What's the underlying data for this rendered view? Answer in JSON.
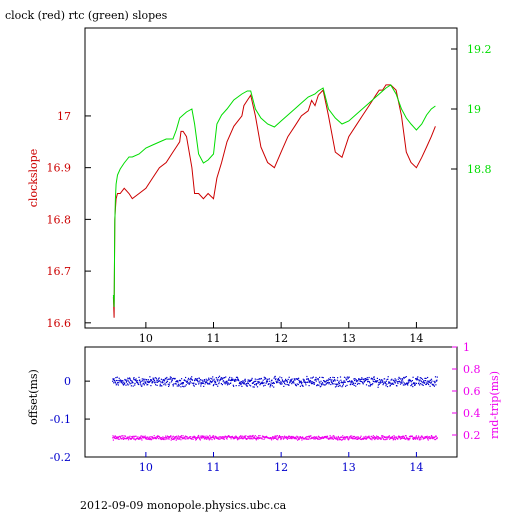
{
  "header": {
    "title": "clock (red) rtc (green) slopes",
    "footer": "2012-09-09  monopole.physics.ubc.ca"
  },
  "colors": {
    "red": "#cc0000",
    "green": "#00dd00",
    "blue": "#0000cc",
    "magenta": "#ee00ee",
    "axis": "#000000"
  },
  "chart_data": [
    {
      "type": "line",
      "title": "clock (red) rtc (green) slopes",
      "xlabel": "",
      "ylabel": "clockslope",
      "xlim": [
        9.1,
        14.6
      ],
      "ylim": [
        16.59,
        17.17
      ],
      "y2lim": [
        18.27,
        19.27
      ],
      "xticks": [
        10,
        11,
        12,
        13,
        14
      ],
      "yticks": [
        16.6,
        16.7,
        16.8,
        16.9,
        17
      ],
      "y2ticks": [
        18.8,
        19,
        19.2
      ],
      "grid": false,
      "series": [
        {
          "name": "clock",
          "axis": "left",
          "color": "red",
          "x": [
            9.52,
            9.53,
            9.54,
            9.55,
            9.56,
            9.58,
            9.62,
            9.68,
            9.75,
            9.8,
            9.9,
            10.0,
            10.1,
            10.2,
            10.3,
            10.4,
            10.45,
            10.5,
            10.52,
            10.55,
            10.6,
            10.68,
            10.72,
            10.78,
            10.85,
            10.92,
            11.0,
            11.05,
            11.12,
            11.2,
            11.3,
            11.42,
            11.45,
            11.5,
            11.55,
            11.62,
            11.7,
            11.8,
            11.9,
            12.0,
            12.1,
            12.2,
            12.3,
            12.4,
            12.45,
            12.5,
            12.55,
            12.62,
            12.7,
            12.8,
            12.9,
            13.0,
            13.1,
            13.2,
            13.3,
            13.4,
            13.45,
            13.5,
            13.55,
            13.62,
            13.7,
            13.78,
            13.85,
            13.92,
            14.0,
            14.08,
            14.15,
            14.22,
            14.28
          ],
          "values": [
            16.65,
            16.61,
            16.8,
            16.82,
            16.84,
            16.85,
            16.85,
            16.86,
            16.85,
            16.84,
            16.85,
            16.86,
            16.88,
            16.9,
            16.91,
            16.93,
            16.94,
            16.95,
            16.97,
            16.97,
            16.96,
            16.9,
            16.85,
            16.85,
            16.84,
            16.85,
            16.84,
            16.88,
            16.91,
            16.95,
            16.98,
            17.0,
            17.02,
            17.03,
            17.04,
            17.0,
            16.94,
            16.91,
            16.9,
            16.93,
            16.96,
            16.98,
            17.0,
            17.01,
            17.03,
            17.02,
            17.04,
            17.05,
            17.0,
            16.93,
            16.92,
            16.96,
            16.98,
            17.0,
            17.02,
            17.04,
            17.05,
            17.05,
            17.06,
            17.06,
            17.05,
            17.0,
            16.93,
            16.91,
            16.9,
            16.92,
            16.94,
            16.96,
            16.98
          ]
        },
        {
          "name": "rtc",
          "axis": "right",
          "color": "green",
          "x": [
            9.52,
            9.53,
            9.54,
            9.55,
            9.56,
            9.58,
            9.62,
            9.68,
            9.75,
            9.8,
            9.9,
            10.0,
            10.1,
            10.2,
            10.3,
            10.4,
            10.45,
            10.5,
            10.55,
            10.6,
            10.68,
            10.72,
            10.78,
            10.85,
            10.92,
            11.0,
            11.05,
            11.12,
            11.2,
            11.3,
            11.42,
            11.5,
            11.55,
            11.62,
            11.7,
            11.8,
            11.9,
            12.0,
            12.1,
            12.2,
            12.3,
            12.4,
            12.5,
            12.55,
            12.62,
            12.7,
            12.8,
            12.9,
            13.0,
            13.1,
            13.2,
            13.3,
            13.4,
            13.5,
            13.55,
            13.62,
            13.7,
            13.78,
            13.85,
            13.92,
            14.0,
            14.08,
            14.15,
            14.22,
            14.28
          ],
          "values": [
            18.38,
            18.34,
            18.62,
            18.7,
            18.75,
            18.78,
            18.8,
            18.82,
            18.84,
            18.84,
            18.85,
            18.87,
            18.88,
            18.89,
            18.9,
            18.9,
            18.93,
            18.97,
            18.98,
            18.99,
            19.0,
            18.95,
            18.85,
            18.82,
            18.83,
            18.85,
            18.95,
            18.98,
            19.0,
            19.03,
            19.05,
            19.06,
            19.06,
            19.0,
            18.97,
            18.95,
            18.94,
            18.96,
            18.98,
            19.0,
            19.02,
            19.04,
            19.05,
            19.06,
            19.07,
            19.0,
            18.97,
            18.95,
            18.96,
            18.98,
            19.0,
            19.02,
            19.04,
            19.06,
            19.07,
            19.08,
            19.05,
            19.0,
            18.97,
            18.95,
            18.93,
            18.95,
            18.98,
            19.0,
            19.01
          ]
        }
      ]
    },
    {
      "type": "scatter",
      "xlabel": "",
      "ylabel": "offset(ms)",
      "y2label": "rnd-trip(ms)",
      "xlim": [
        9.1,
        14.6
      ],
      "ylim": [
        -0.2,
        0.09
      ],
      "y2lim": [
        0.0,
        1.0
      ],
      "xticks": [
        10,
        11,
        12,
        13,
        14
      ],
      "yticks": [
        -0.2,
        -0.1,
        0
      ],
      "y2ticks": [
        0.2,
        0.4,
        0.6,
        0.8,
        1
      ],
      "grid": false,
      "series": [
        {
          "name": "offset",
          "axis": "left",
          "color": "blue",
          "x_range": [
            9.5,
            14.3
          ],
          "center": 0.0,
          "spread": 0.01
        },
        {
          "name": "rnd-trip",
          "axis": "right",
          "color": "magenta",
          "x_range": [
            9.5,
            14.3
          ],
          "center": 0.18,
          "spread": 0.015
        }
      ]
    }
  ]
}
